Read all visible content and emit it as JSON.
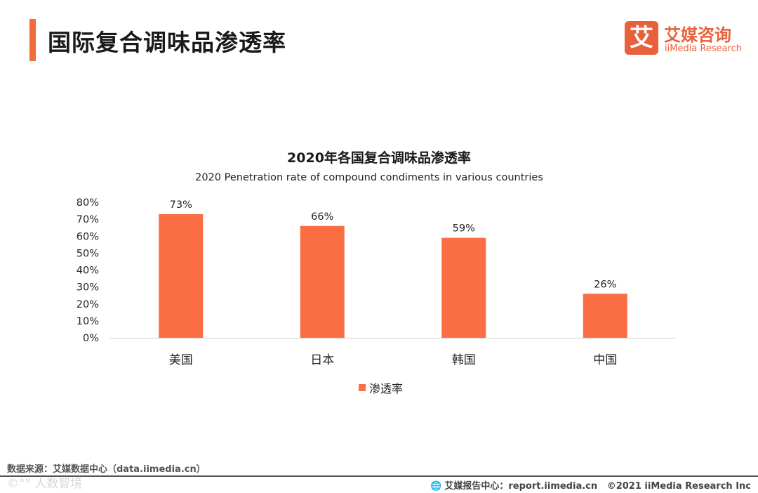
{
  "page": {
    "title": "国际复合调味品渗透率"
  },
  "logo": {
    "mark": "艾",
    "cn": "艾媒咨询",
    "en": "iiMedia Research"
  },
  "footer": {
    "source": "数据来源：艾媒数据中心（data.iimedia.cn）",
    "watermark": "©⁠°° 人数智境",
    "report_center": "艾媒报告中心：report.iimedia.cn",
    "copyright": "©2021  iiMedia Research  Inc"
  },
  "colors": {
    "accent": "#f26b3a",
    "bar": "#fb6d42"
  },
  "chart_data": {
    "type": "bar",
    "title": "2020年各国复合调味品渗透率",
    "subtitle": "2020 Penetration rate of compound condiments in various countries",
    "categories": [
      "美国",
      "日本",
      "韩国",
      "中国"
    ],
    "series": [
      {
        "name": "渗透率",
        "values": [
          73,
          66,
          59,
          26
        ],
        "labels": [
          "73%",
          "66%",
          "59%",
          "26%"
        ]
      }
    ],
    "yticks": [
      "0%",
      "10%",
      "20%",
      "30%",
      "40%",
      "50%",
      "60%",
      "70%",
      "80%"
    ],
    "ylim": [
      0,
      80
    ],
    "grid": false,
    "legend": "bottom"
  }
}
